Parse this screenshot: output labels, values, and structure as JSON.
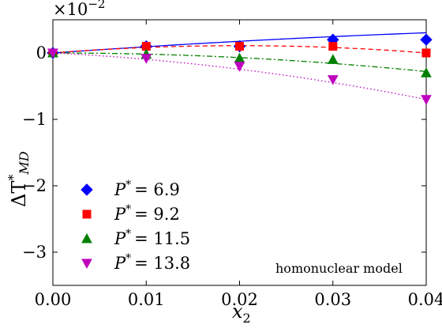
{
  "chart_data": {
    "type": "line",
    "xlabel": "x",
    "xlabel_sub": "2",
    "ylabel": "ΔT",
    "ylabel_sup": "*",
    "ylabel_sub": "MD",
    "y_multiplier": "×10",
    "y_multiplier_exp": "−2",
    "xlim": [
      0.0,
      0.04
    ],
    "ylim": [
      -3.5,
      0.5
    ],
    "x_ticks": [
      0.0,
      0.01,
      0.02,
      0.03,
      0.04
    ],
    "x_tick_labels": [
      "0.00",
      "0.01",
      "0.02",
      "0.03",
      "0.04"
    ],
    "y_ticks": [
      0,
      -1,
      -2,
      -3
    ],
    "y_tick_labels": [
      "0",
      "−1",
      "−2",
      "−3"
    ],
    "grid": false,
    "legend_position": "lower-left",
    "annotation": "homonuclear model",
    "series": [
      {
        "name": "P* = 6.9",
        "label_main": "P",
        "label_value": "= 6.9",
        "color": "#0000ff",
        "marker": "diamond",
        "line_style": "solid",
        "x": [
          0.0,
          0.01,
          0.02,
          0.03,
          0.04
        ],
        "y": [
          0.0,
          0.1,
          0.1,
          0.2,
          0.2
        ],
        "fit_coeffs": [
          0.0,
          10.0,
          -60.0
        ]
      },
      {
        "name": "P* = 9.2",
        "label_main": "P",
        "label_value": "= 9.2",
        "color": "#ff0000",
        "marker": "square",
        "line_style": "dashed",
        "x": [
          0.0,
          0.01,
          0.02,
          0.03,
          0.04
        ],
        "y": [
          0.0,
          0.1,
          0.1,
          0.1,
          0.0
        ],
        "fit_coeffs": [
          0.0,
          11.0,
          -275.0
        ]
      },
      {
        "name": "P* = 11.5",
        "label_main": "P",
        "label_value": "= 11.5",
        "color": "#008000",
        "marker": "triangle-up",
        "line_style": "dashdot",
        "x": [
          0.0,
          0.01,
          0.02,
          0.03,
          0.04
        ],
        "y": [
          0.0,
          -0.02,
          -0.08,
          -0.1,
          -0.3
        ],
        "fit_coeffs": [
          0.0,
          0.0,
          -175.0
        ]
      },
      {
        "name": "P* = 13.8",
        "label_main": "P",
        "label_value": "= 13.8",
        "color": "#bf00bf",
        "marker": "triangle-down",
        "line_style": "dotted",
        "x": [
          0.0,
          0.01,
          0.02,
          0.03,
          0.04
        ],
        "y": [
          0.0,
          -0.08,
          -0.2,
          -0.4,
          -0.7
        ],
        "fit_coeffs": [
          0.0,
          -7.0,
          -262.5
        ]
      }
    ]
  }
}
